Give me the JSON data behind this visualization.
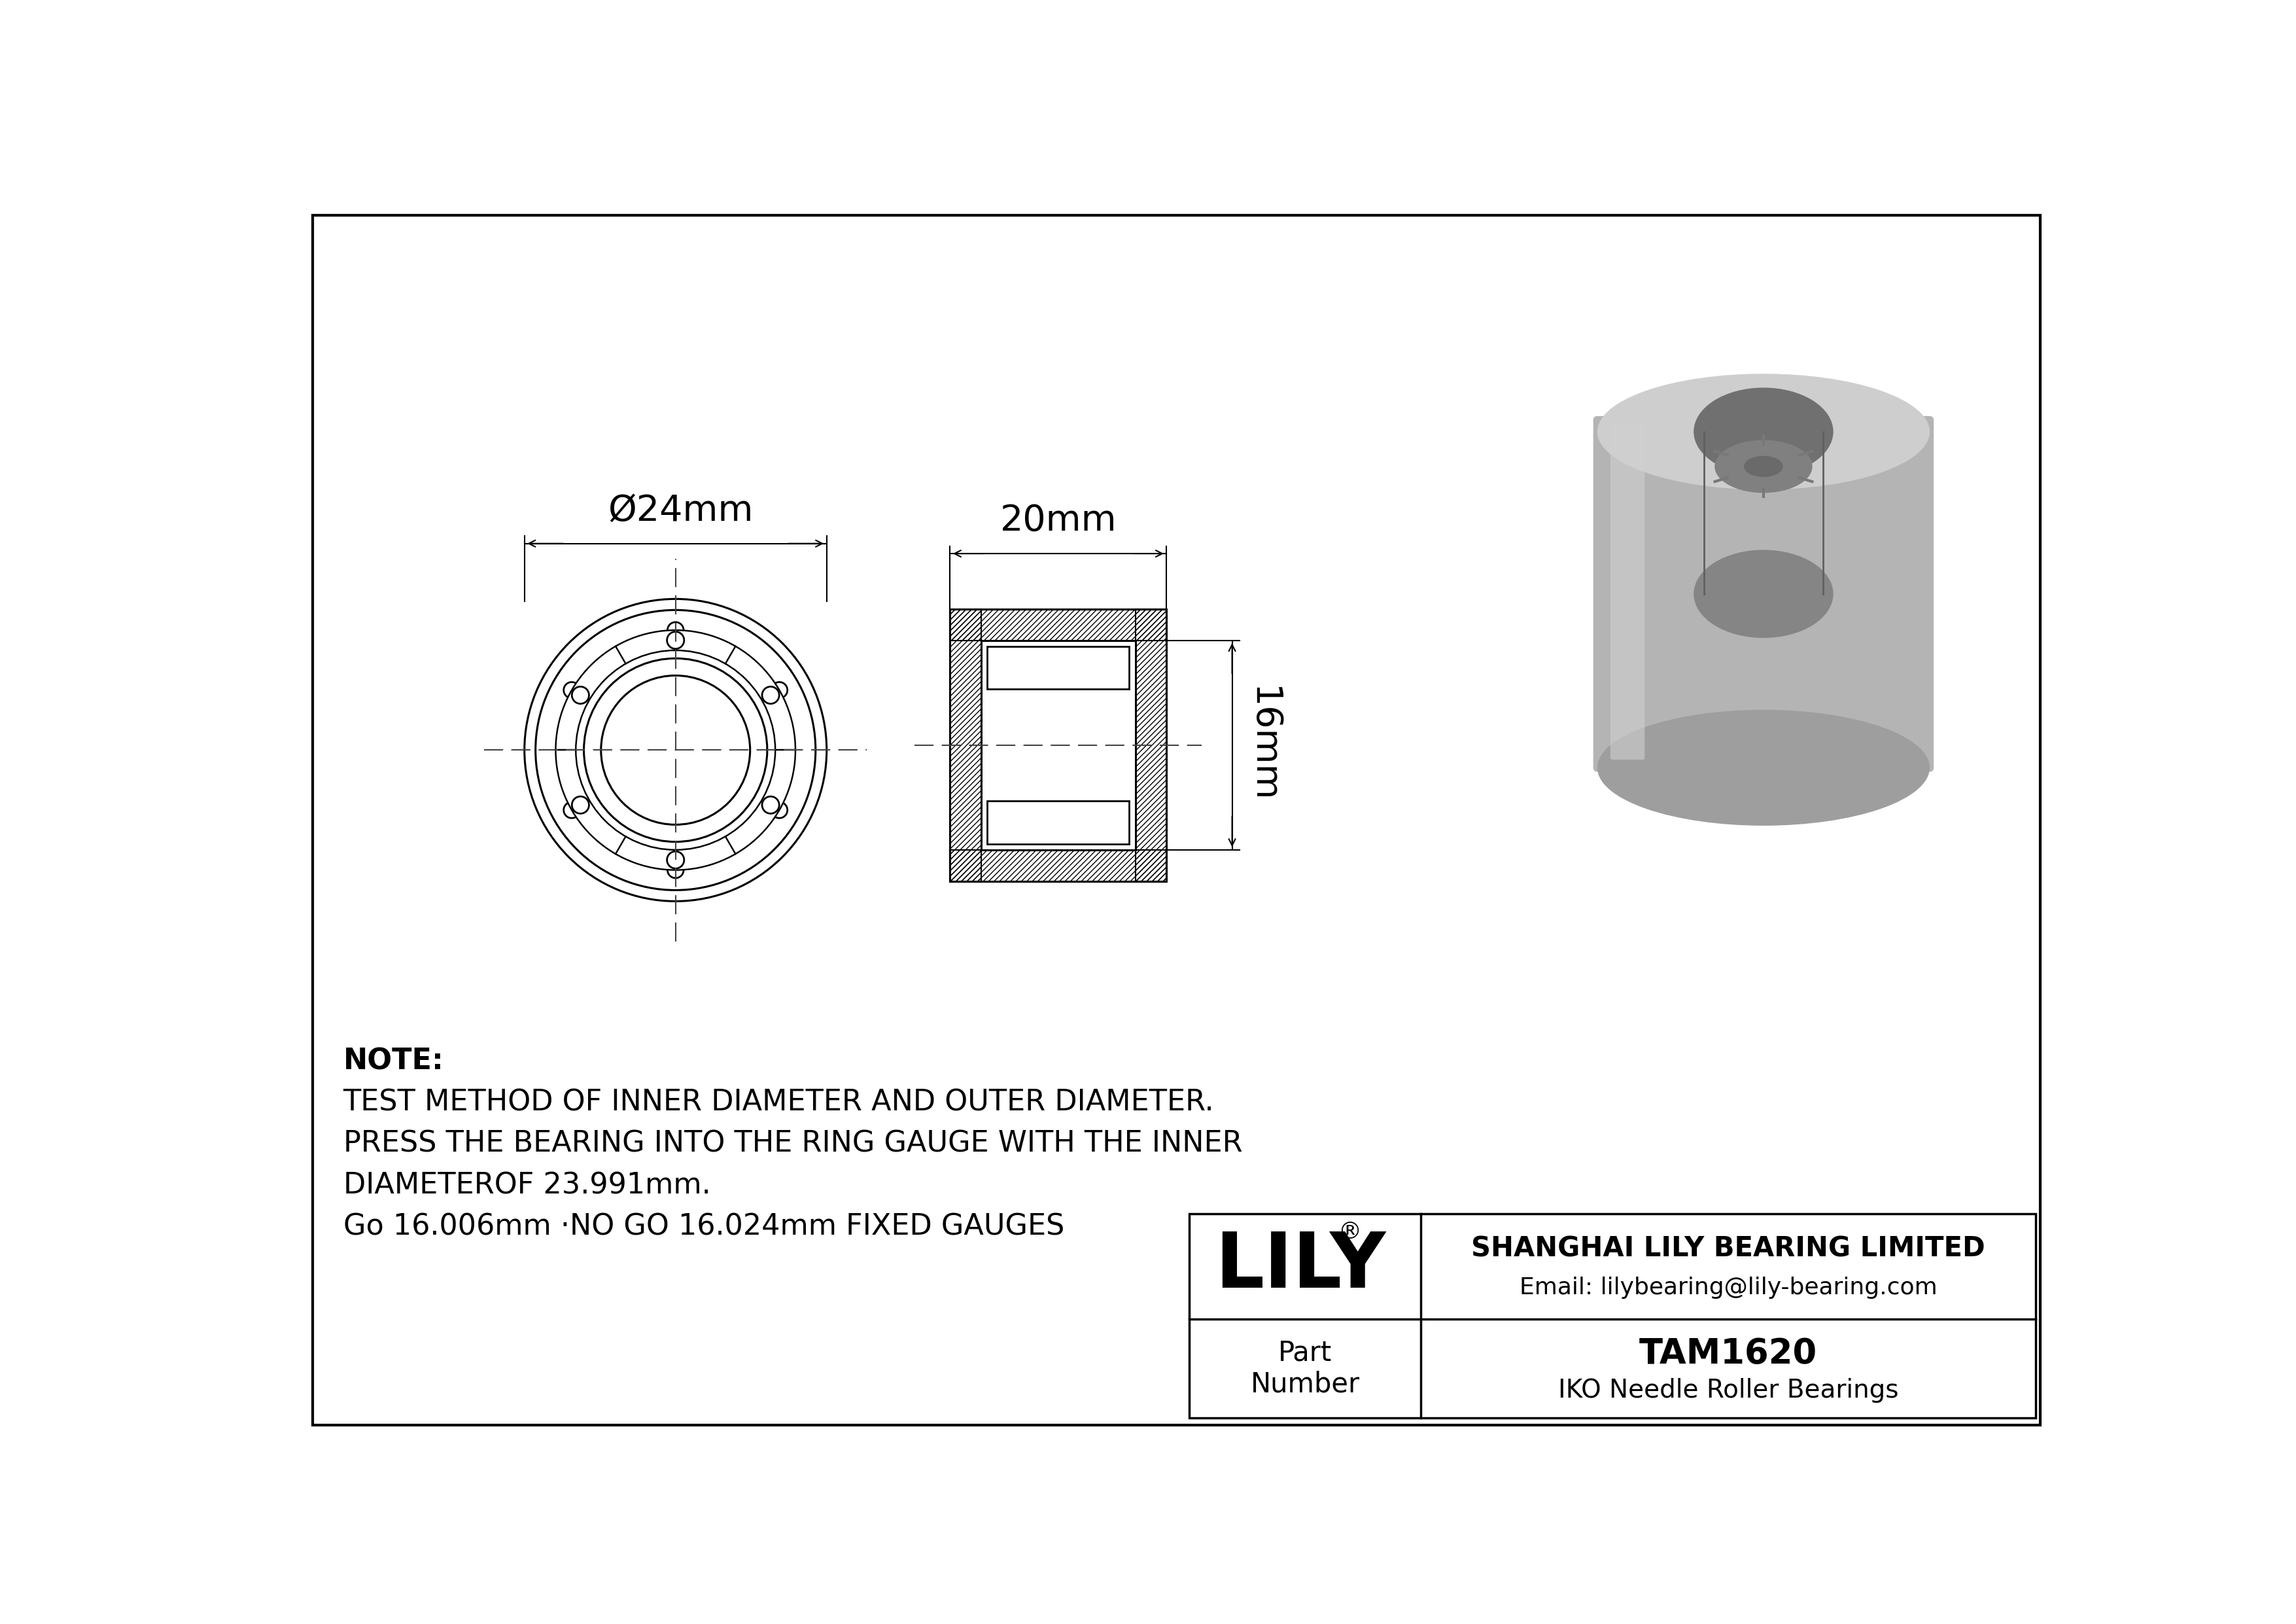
{
  "bg_color": "#ffffff",
  "border_color": "#000000",
  "line_color": "#000000",
  "note_lines": [
    "NOTE:",
    "TEST METHOD OF INNER DIAMETER AND OUTER DIAMETER.",
    "PRESS THE BEARING INTO THE RING GAUGE WITH THE INNER",
    "DIAMETEROF 23.991mm.",
    "Go 16.006mm ·NO GO 16.024mm FIXED GAUGES"
  ],
  "company_name": "SHANGHAI LILY BEARING LIMITED",
  "company_email": "Email: lilybearing@lily-bearing.com",
  "part_label": "Part\nNumber",
  "part_number": "TAM1620",
  "part_type": "IKO Needle Roller Bearings",
  "lily_logo": "LILY",
  "dim_24": "Ø24mm",
  "dim_20": "20mm",
  "dim_16": "16mm",
  "gray_light": "#c8c8c8",
  "gray_mid": "#aaaaaa",
  "gray_dark": "#888888",
  "gray_shadow": "#999999"
}
